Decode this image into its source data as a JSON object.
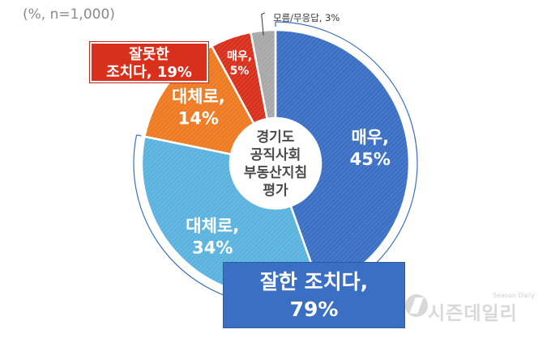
{
  "base_note": "(%, n=1,000)",
  "center_title": [
    "경기도",
    "공직사회",
    "부동산지침",
    "평가"
  ],
  "dont_know_label": "모름/무응답, 3%",
  "negative_total": {
    "line1": "잘못한",
    "line2": "조치다, 19%"
  },
  "positive_total": {
    "line1": "잘한 조치다,",
    "line2": "79%"
  },
  "watermark": {
    "text": "시즌데일리",
    "small": "Season Daily"
  },
  "colors": {
    "very_good": "#3a6fc4",
    "somewhat_good": "#5ab3de",
    "somewhat_bad": "#ee7a22",
    "very_bad": "#d9301c",
    "dont_know": "#a8a8a8"
  },
  "chart_data": {
    "type": "pie",
    "title": "경기도 공직사회 부동산지침 평가",
    "unit": "%",
    "n": 1000,
    "slices": [
      {
        "name": "매우 잘한 조치다",
        "label_top": "매우,",
        "label_bottom": "45%",
        "value": 45,
        "color": "#3a6fc4",
        "text_color": "#ffffff"
      },
      {
        "name": "대체로 잘한 조치다",
        "label_top": "대체로,",
        "label_bottom": "34%",
        "value": 34,
        "color": "#5ab3de",
        "text_color": "#ffffff"
      },
      {
        "name": "대체로 잘못한 조치다",
        "label_top": "대체로,",
        "label_bottom": "14%",
        "value": 14,
        "color": "#ee7a22",
        "text_color": "#ffffff"
      },
      {
        "name": "매우 잘못한 조치다",
        "label_top": "매우,",
        "label_bottom": "5%",
        "value": 5,
        "color": "#d9301c",
        "text_color": "#ffffff"
      },
      {
        "name": "모름/무응답",
        "label_top": "",
        "label_bottom": "",
        "value": 3,
        "color": "#a8a8a8",
        "text_color": "#ffffff"
      }
    ],
    "groups": [
      {
        "name": "잘한 조치다",
        "value": 79
      },
      {
        "name": "잘못한 조치다",
        "value": 19
      }
    ]
  }
}
